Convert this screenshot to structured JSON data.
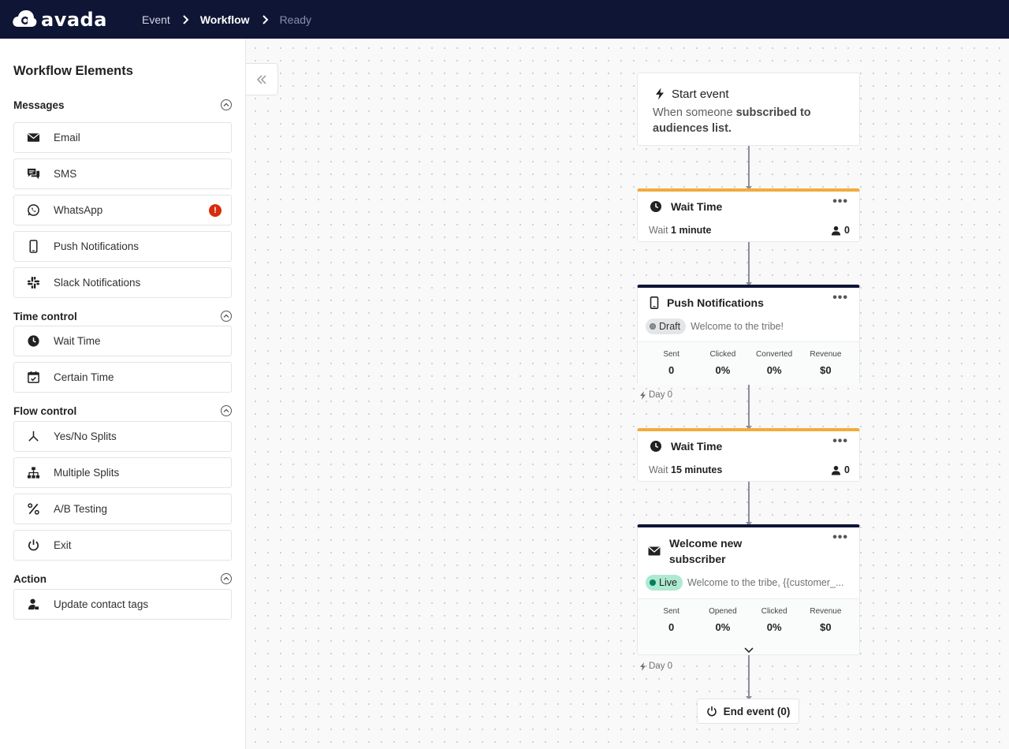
{
  "app": {
    "logo_text": "avada"
  },
  "breadcrumb": [
    {
      "label": "Event"
    },
    {
      "label": "Workflow"
    },
    {
      "label": "Ready"
    }
  ],
  "sidebar": {
    "title": "Workflow Elements",
    "sections": {
      "messages": {
        "title": "Messages",
        "items": [
          "Email",
          "SMS",
          "WhatsApp",
          "Push Notifications",
          "Slack Notifications"
        ],
        "whatsapp_alert": "!"
      },
      "time_control": {
        "title": "Time control",
        "items": [
          "Wait Time",
          "Certain Time"
        ]
      },
      "flow_control": {
        "title": "Flow control",
        "items": [
          "Yes/No Splits",
          "Multiple Splits",
          "A/B Testing",
          "Exit"
        ]
      },
      "action": {
        "title": "Action",
        "items": [
          "Update contact tags"
        ]
      }
    }
  },
  "workflow": {
    "start": {
      "title": "Start event",
      "desc_prefix": "When someone ",
      "desc_bold": "subscribed to audiences list."
    },
    "wait1": {
      "title": "Wait Time",
      "prefix": "Wait",
      "value": "1 minute",
      "count": "0"
    },
    "push": {
      "title": "Push Notifications",
      "status": "Draft",
      "message": "Welcome to the tribe!",
      "stats": [
        {
          "label": "Sent",
          "value": "0"
        },
        {
          "label": "Clicked",
          "value": "0%"
        },
        {
          "label": "Converted",
          "value": "0%"
        },
        {
          "label": "Revenue",
          "value": "$0"
        }
      ],
      "day": "Day 0"
    },
    "wait2": {
      "title": "Wait Time",
      "prefix": "Wait",
      "value": "15 minutes",
      "count": "0"
    },
    "email": {
      "title_line1": "Welcome new",
      "title_line2": "subscriber",
      "status": "Live",
      "message": "Welcome to the tribe, {{customer_...",
      "stats": [
        {
          "label": "Sent",
          "value": "0"
        },
        {
          "label": "Opened",
          "value": "0%"
        },
        {
          "label": "Clicked",
          "value": "0%"
        },
        {
          "label": "Revenue",
          "value": "$0"
        }
      ],
      "day": "Day 0"
    },
    "end": {
      "label": "End event (0)"
    },
    "more_label": "•••"
  },
  "colors": {
    "topbar": "#0f1535",
    "wait_accent": "#f3ab3c",
    "message_accent": "#0f1535",
    "alert": "#d72c0d",
    "live": "#007f5f"
  }
}
